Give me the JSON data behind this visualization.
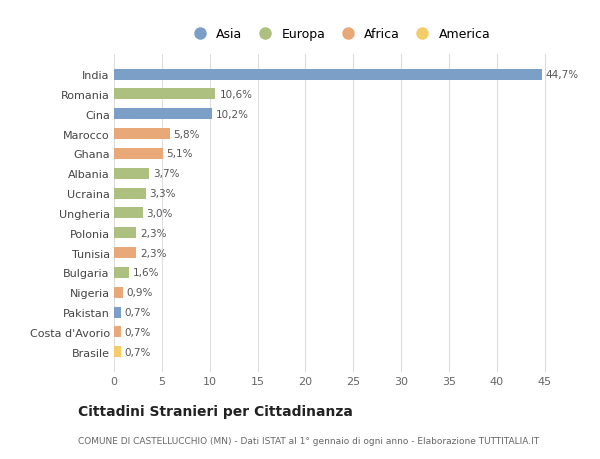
{
  "countries": [
    "India",
    "Romania",
    "Cina",
    "Marocco",
    "Ghana",
    "Albania",
    "Ucraina",
    "Ungheria",
    "Polonia",
    "Tunisia",
    "Bulgaria",
    "Nigeria",
    "Pakistan",
    "Costa d'Avorio",
    "Brasile"
  ],
  "values": [
    44.7,
    10.6,
    10.2,
    5.8,
    5.1,
    3.7,
    3.3,
    3.0,
    2.3,
    2.3,
    1.6,
    0.9,
    0.7,
    0.7,
    0.7
  ],
  "labels": [
    "44,7%",
    "10,6%",
    "10,2%",
    "5,8%",
    "5,1%",
    "3,7%",
    "3,3%",
    "3,0%",
    "2,3%",
    "2,3%",
    "1,6%",
    "0,9%",
    "0,7%",
    "0,7%",
    "0,7%"
  ],
  "continents": [
    "Asia",
    "Europa",
    "Asia",
    "Africa",
    "Africa",
    "Europa",
    "Europa",
    "Europa",
    "Europa",
    "Africa",
    "Europa",
    "Africa",
    "Asia",
    "Africa",
    "America"
  ],
  "colors": {
    "Asia": "#7b9fc7",
    "Europa": "#adc080",
    "Africa": "#e8a878",
    "America": "#f5cc6a"
  },
  "legend_order": [
    "Asia",
    "Europa",
    "Africa",
    "America"
  ],
  "title": "Cittadini Stranieri per Cittadinanza",
  "subtitle": "COMUNE DI CASTELLUCCHIO (MN) - Dati ISTAT al 1° gennaio di ogni anno - Elaborazione TUTTITALIA.IT",
  "xlim": [
    0,
    47
  ],
  "xticks": [
    0,
    5,
    10,
    15,
    20,
    25,
    30,
    35,
    40,
    45
  ],
  "background_color": "#ffffff",
  "grid_color": "#dddddd"
}
